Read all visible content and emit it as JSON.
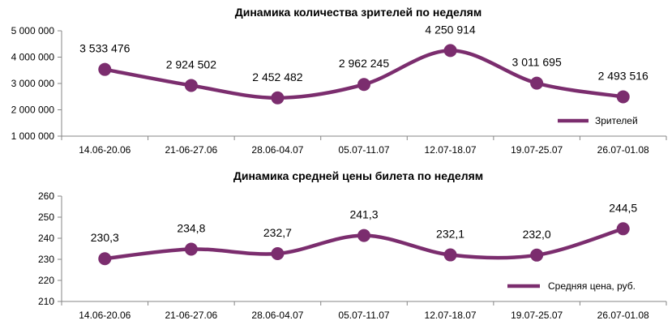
{
  "chart_data": [
    {
      "type": "line",
      "smooth": true,
      "title": "Динамика количества зрителей по неделям",
      "categories": [
        "14.06-20.06",
        "21-06-27.06",
        "28.06-04.07",
        "05.07-11.07",
        "12.07-18.07",
        "19.07-25.07",
        "26.07-01.08"
      ],
      "series": [
        {
          "name": "Зрителей",
          "values": [
            3533476,
            2924502,
            2452482,
            2962245,
            4250914,
            3011695,
            2493516
          ],
          "labels": [
            "3 533 476",
            "2 924 502",
            "2 452 482",
            "2 962 245",
            "4 250 914",
            "3 011 695",
            "2 493 516"
          ],
          "color": "#7b2d6e"
        }
      ],
      "ylim": [
        1000000,
        5000000
      ],
      "yticks": [
        1000000,
        2000000,
        3000000,
        4000000,
        5000000
      ],
      "ytick_labels": [
        "1 000 000",
        "2 000 000",
        "3 000 000",
        "4 000 000",
        "5 000 000"
      ],
      "legend": "bottom-right",
      "grid": false
    },
    {
      "type": "line",
      "smooth": true,
      "title": "Динамика средней цены билета по неделям",
      "categories": [
        "14.06-20.06",
        "21-06-27.06",
        "28.06-04.07",
        "05.07-11.07",
        "12.07-18.07",
        "19.07-25.07",
        "26.07-01.08"
      ],
      "series": [
        {
          "name": "Средняя цена, руб.",
          "values": [
            230.3,
            234.8,
            232.7,
            241.3,
            232.1,
            232.0,
            244.5
          ],
          "labels": [
            "230,3",
            "234,8",
            "232,7",
            "241,3",
            "232,1",
            "232,0",
            "244,5"
          ],
          "color": "#7b2d6e"
        }
      ],
      "ylim": [
        210,
        260
      ],
      "yticks": [
        210,
        220,
        230,
        240,
        250,
        260
      ],
      "ytick_labels": [
        "210",
        "220",
        "230",
        "240",
        "250",
        "260"
      ],
      "legend": "bottom-right",
      "grid": false
    }
  ]
}
